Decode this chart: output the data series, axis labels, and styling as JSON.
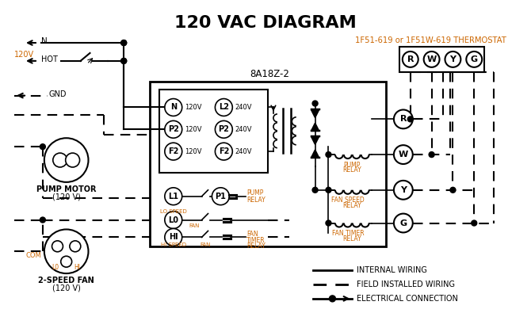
{
  "title": "120 VAC DIAGRAM",
  "title_fontsize": 16,
  "title_fontweight": "bold",
  "bg_color": "#ffffff",
  "line_color": "#000000",
  "orange_color": "#CC6600",
  "text_color": "#000000",
  "thermostat_label": "1F51-619 or 1F51W-619 THERMOSTAT",
  "board_label": "8A18Z-2"
}
